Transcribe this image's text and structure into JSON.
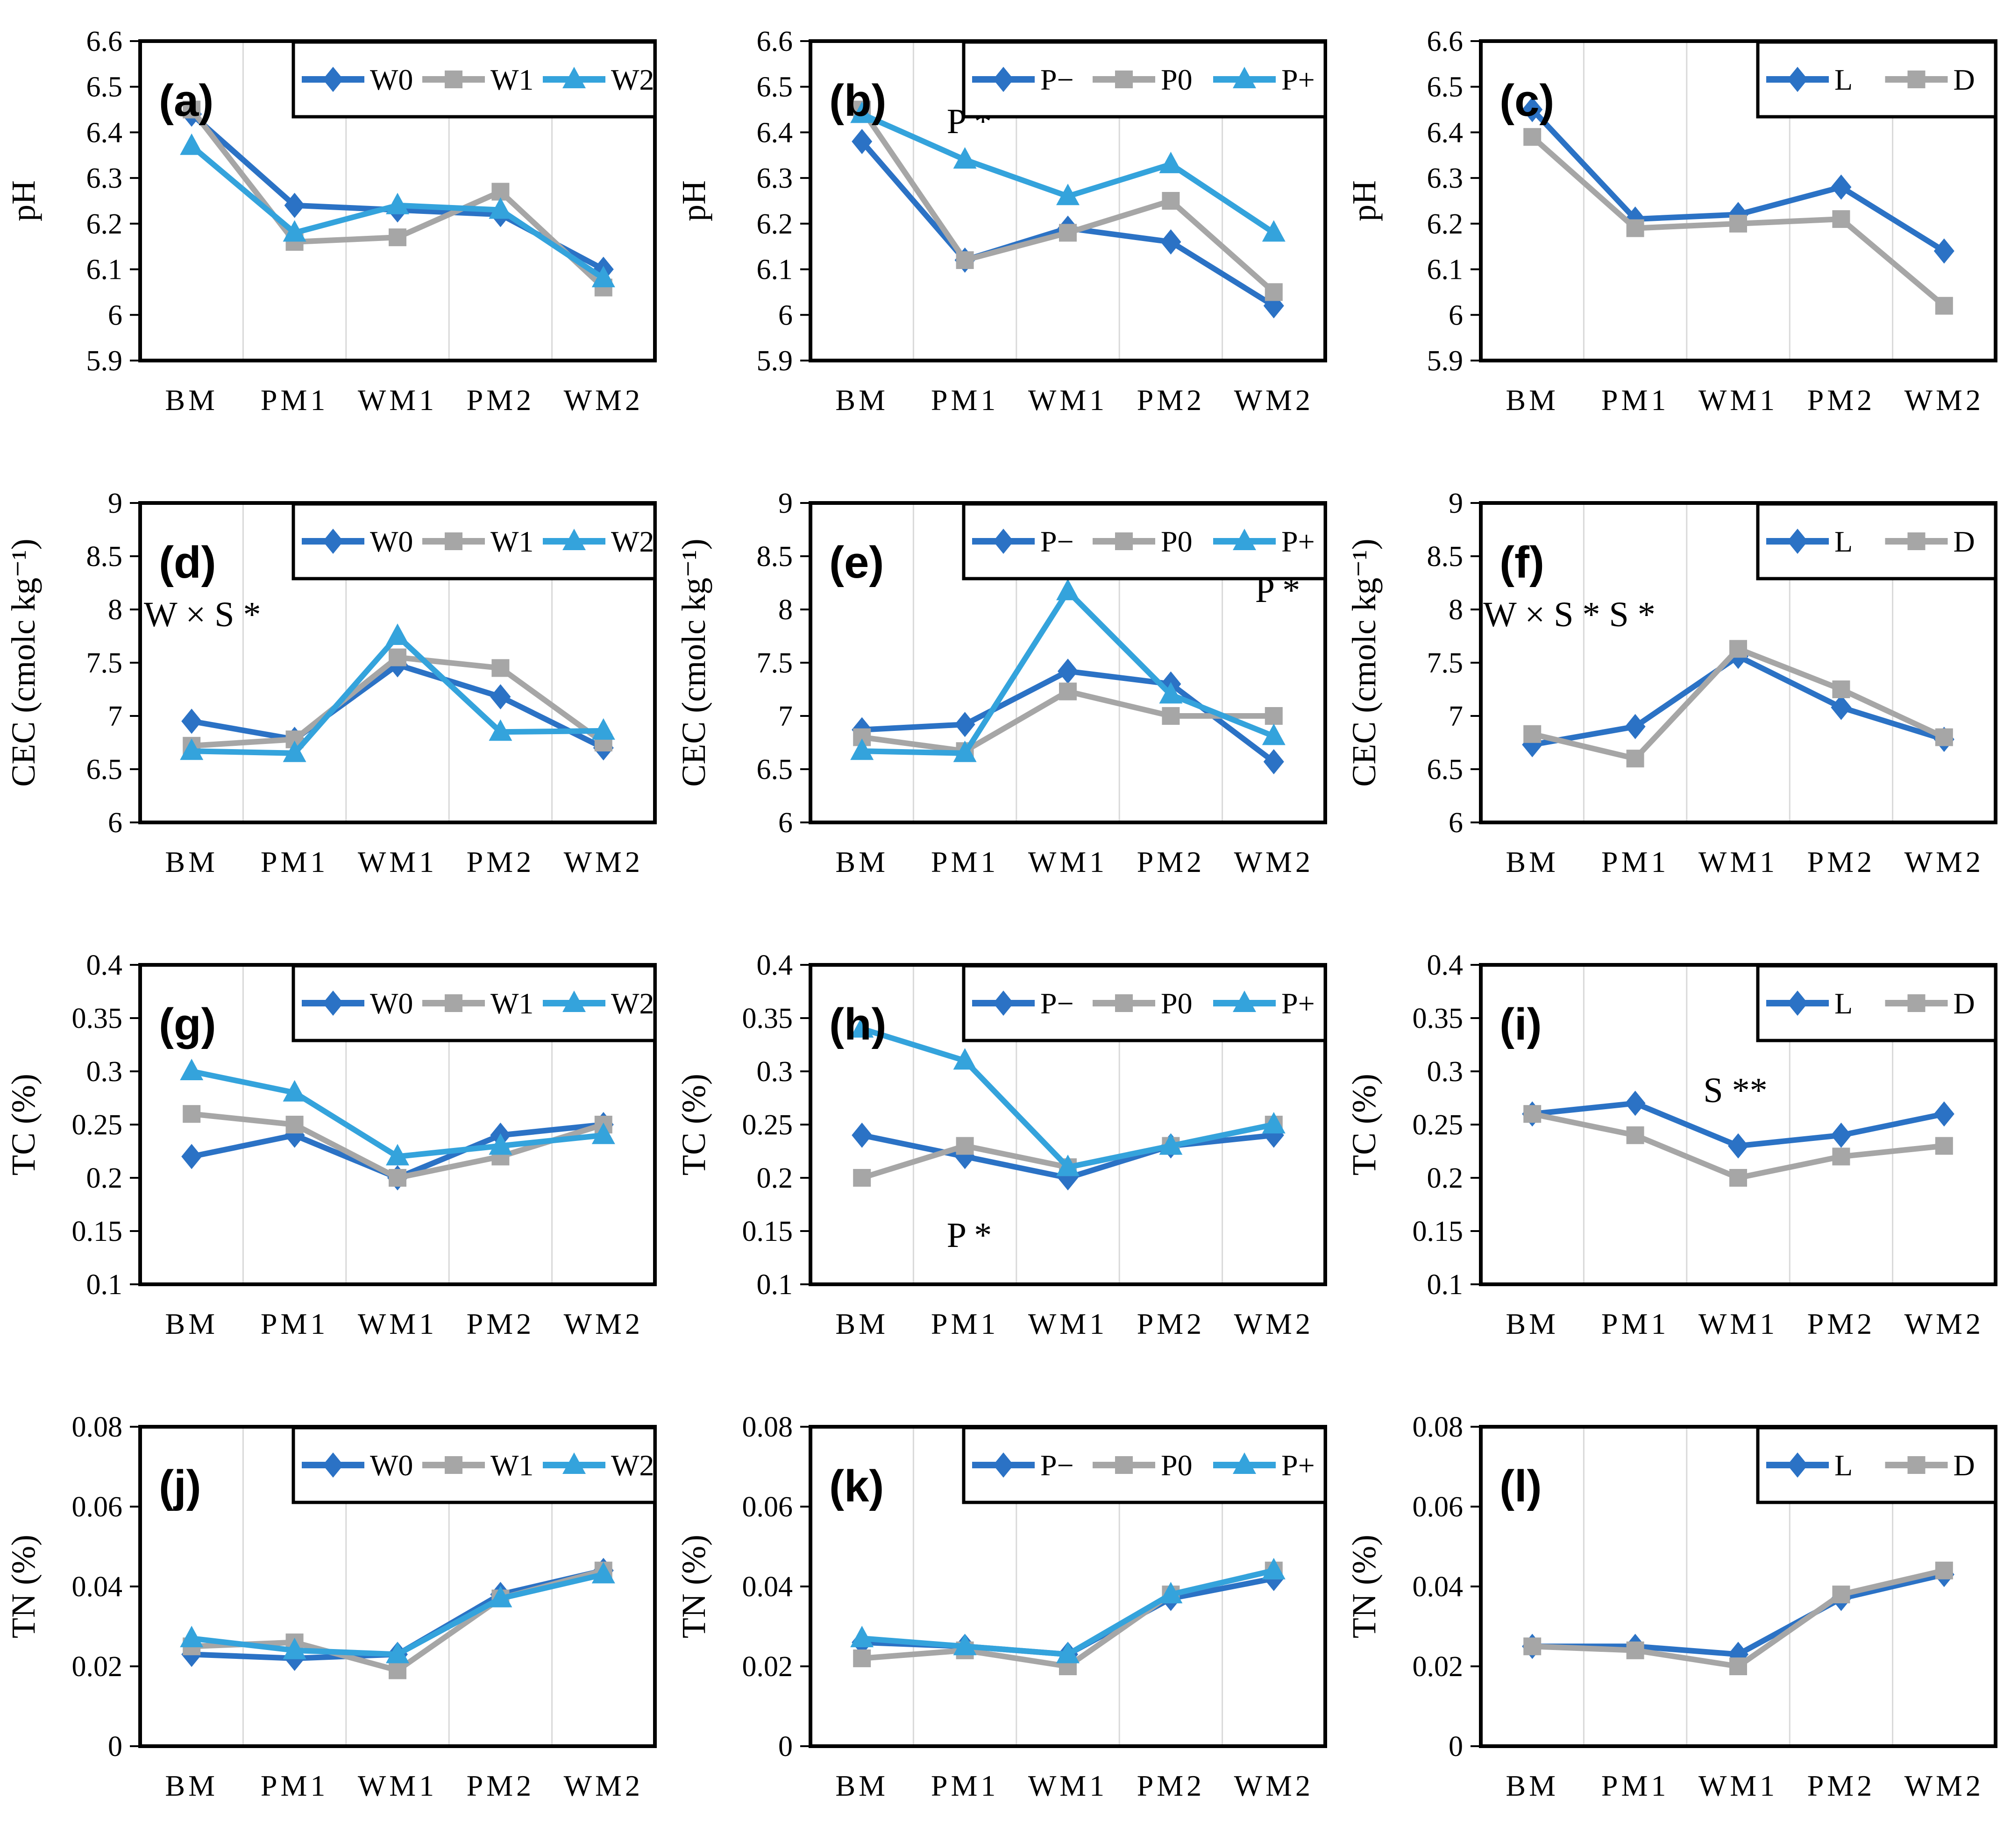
{
  "figure_description": "12-panel line chart figure (a)-(l): soil pH, CEC, TC, TN across sampling stages for watering (W0/W1/W2), phosphorus (P−/P0/P+) and light (L/D) treatments",
  "colors": {
    "series_blue": "#2B72C5",
    "series_gray": "#A6A6A6",
    "series_lightblue": "#34A3DC",
    "gridline": "#D9D9D9",
    "axis": "#000000",
    "background": "#FFFFFF"
  },
  "categories": [
    "BM",
    "PM1",
    "WM1",
    "PM2",
    "WM2"
  ],
  "chart_data": [
    {
      "type": "line",
      "id": "a",
      "label": "(a)",
      "ylabel": "pH",
      "ylim": [
        5.9,
        6.6
      ],
      "yticks": [
        "5.9",
        "6",
        "6.1",
        "6.2",
        "6.3",
        "6.4",
        "6.5",
        "6.6"
      ],
      "categories": [
        "BM",
        "PM1",
        "WM1",
        "PM2",
        "WM2"
      ],
      "grid": "vertical",
      "legend_position": "top-right",
      "series": [
        {
          "name": "W0",
          "marker": "diamond",
          "color": "#2B72C5",
          "values": [
            6.44,
            6.24,
            6.23,
            6.22,
            6.1
          ]
        },
        {
          "name": "W1",
          "marker": "square",
          "color": "#A6A6A6",
          "values": [
            6.45,
            6.16,
            6.17,
            6.27,
            6.06
          ]
        },
        {
          "name": "W2",
          "marker": "triangle",
          "color": "#34A3DC",
          "values": [
            6.37,
            6.18,
            6.24,
            6.23,
            6.08
          ]
        }
      ],
      "annotation": null
    },
    {
      "type": "line",
      "id": "b",
      "label": "(b)",
      "ylabel": "pH",
      "ylim": [
        5.9,
        6.6
      ],
      "yticks": [
        "5.9",
        "6",
        "6.1",
        "6.2",
        "6.3",
        "6.4",
        "6.5",
        "6.6"
      ],
      "categories": [
        "BM",
        "PM1",
        "WM1",
        "PM2",
        "WM2"
      ],
      "grid": "vertical",
      "legend_position": "top-right",
      "series": [
        {
          "name": "P−",
          "marker": "diamond",
          "color": "#2B72C5",
          "values": [
            6.38,
            6.12,
            6.19,
            6.16,
            6.02
          ]
        },
        {
          "name": "P0",
          "marker": "square",
          "color": "#A6A6A6",
          "values": [
            6.45,
            6.12,
            6.18,
            6.25,
            6.05
          ]
        },
        {
          "name": "P+",
          "marker": "triangle",
          "color": "#34A3DC",
          "values": [
            6.44,
            6.34,
            6.26,
            6.33,
            6.18
          ]
        }
      ],
      "annotation": {
        "text": "P *",
        "x": 640,
        "y": 285,
        "anchor": "middle"
      }
    },
    {
      "type": "line",
      "id": "c",
      "label": "(c)",
      "ylabel": "pH",
      "ylim": [
        5.9,
        6.6
      ],
      "yticks": [
        "5.9",
        "6",
        "6.1",
        "6.2",
        "6.3",
        "6.4",
        "6.5",
        "6.6"
      ],
      "categories": [
        "BM",
        "PM1",
        "WM1",
        "PM2",
        "WM2"
      ],
      "grid": "vertical",
      "legend_position": "top-right",
      "series": [
        {
          "name": "L",
          "marker": "diamond",
          "color": "#2B72C5",
          "values": [
            6.45,
            6.21,
            6.22,
            6.28,
            6.14
          ]
        },
        {
          "name": "D",
          "marker": "square",
          "color": "#A6A6A6",
          "values": [
            6.39,
            6.19,
            6.2,
            6.21,
            6.02
          ]
        }
      ],
      "annotation": null
    },
    {
      "type": "line",
      "id": "d",
      "label": "(d)",
      "ylabel": "CEC (cmolc kg⁻¹)",
      "ylim": [
        6,
        9
      ],
      "yticks": [
        "6",
        "6.5",
        "7",
        "7.5",
        "8",
        "8.5",
        "9"
      ],
      "categories": [
        "BM",
        "PM1",
        "WM1",
        "PM2",
        "WM2"
      ],
      "grid": "vertical",
      "legend_position": "top-right",
      "series": [
        {
          "name": "W0",
          "marker": "diamond",
          "color": "#2B72C5",
          "values": [
            6.95,
            6.78,
            7.48,
            7.18,
            6.7
          ]
        },
        {
          "name": "W1",
          "marker": "square",
          "color": "#A6A6A6",
          "values": [
            6.72,
            6.78,
            7.55,
            7.45,
            6.75
          ]
        },
        {
          "name": "W2",
          "marker": "triangle",
          "color": "#34A3DC",
          "values": [
            6.67,
            6.65,
            7.75,
            6.85,
            6.86
          ]
        }
      ],
      "annotation": {
        "text": "W × S *",
        "x": 308,
        "y": 352,
        "anchor": "start"
      }
    },
    {
      "type": "line",
      "id": "e",
      "label": "(e)",
      "ylabel": "CEC (cmolc kg⁻¹)",
      "ylim": [
        6,
        9
      ],
      "yticks": [
        "6",
        "6.5",
        "7",
        "7.5",
        "8",
        "8.5",
        "9"
      ],
      "categories": [
        "BM",
        "PM1",
        "WM1",
        "PM2",
        "WM2"
      ],
      "grid": "vertical",
      "legend_position": "top-right",
      "series": [
        {
          "name": "P−",
          "marker": "diamond",
          "color": "#2B72C5",
          "values": [
            6.87,
            6.92,
            7.42,
            7.3,
            6.57
          ]
        },
        {
          "name": "P0",
          "marker": "square",
          "color": "#A6A6A6",
          "values": [
            6.8,
            6.67,
            7.23,
            7.0,
            7.0
          ]
        },
        {
          "name": "P+",
          "marker": "triangle",
          "color": "#34A3DC",
          "values": [
            6.67,
            6.65,
            8.17,
            7.2,
            6.81
          ]
        }
      ],
      "annotation": {
        "text": "P *",
        "x": 1300,
        "y": 300,
        "anchor": "middle"
      }
    },
    {
      "type": "line",
      "id": "f",
      "label": "(f)",
      "ylabel": "CEC (cmolc kg⁻¹)",
      "ylim": [
        6,
        9
      ],
      "yticks": [
        "6",
        "6.5",
        "7",
        "7.5",
        "8",
        "8.5",
        "9"
      ],
      "categories": [
        "BM",
        "PM1",
        "WM1",
        "PM2",
        "WM2"
      ],
      "grid": "vertical",
      "legend_position": "top-right",
      "series": [
        {
          "name": "L",
          "marker": "diamond",
          "color": "#2B72C5",
          "values": [
            6.73,
            6.9,
            7.56,
            7.08,
            6.78
          ]
        },
        {
          "name": "D",
          "marker": "square",
          "color": "#A6A6A6",
          "values": [
            6.83,
            6.6,
            7.63,
            7.25,
            6.8
          ]
        }
      ],
      "annotation": {
        "text": "W × S *  S *",
        "x": 305,
        "y": 352,
        "anchor": "start"
      }
    },
    {
      "type": "line",
      "id": "g",
      "label": "(g)",
      "ylabel": "TC (%)",
      "ylim": [
        0.1,
        0.4
      ],
      "yticks": [
        "0.1",
        "0.15",
        "0.2",
        "0.25",
        "0.3",
        "0.35",
        "0.4"
      ],
      "categories": [
        "BM",
        "PM1",
        "WM1",
        "PM2",
        "WM2"
      ],
      "grid": "vertical",
      "legend_position": "top-right",
      "series": [
        {
          "name": "W0",
          "marker": "diamond",
          "color": "#2B72C5",
          "values": [
            0.22,
            0.24,
            0.2,
            0.24,
            0.25
          ]
        },
        {
          "name": "W1",
          "marker": "square",
          "color": "#A6A6A6",
          "values": [
            0.26,
            0.25,
            0.2,
            0.22,
            0.25
          ]
        },
        {
          "name": "W2",
          "marker": "triangle",
          "color": "#34A3DC",
          "values": [
            0.3,
            0.28,
            0.22,
            0.23,
            0.24
          ]
        }
      ],
      "annotation": null
    },
    {
      "type": "line",
      "id": "h",
      "label": "(h)",
      "ylabel": "TC (%)",
      "ylim": [
        0.1,
        0.4
      ],
      "yticks": [
        "0.1",
        "0.15",
        "0.2",
        "0.25",
        "0.3",
        "0.35",
        "0.4"
      ],
      "categories": [
        "BM",
        "PM1",
        "WM1",
        "PM2",
        "WM2"
      ],
      "grid": "vertical",
      "legend_position": "top-right",
      "series": [
        {
          "name": "P−",
          "marker": "diamond",
          "color": "#2B72C5",
          "values": [
            0.24,
            0.22,
            0.2,
            0.23,
            0.24
          ]
        },
        {
          "name": "P0",
          "marker": "square",
          "color": "#A6A6A6",
          "values": [
            0.2,
            0.23,
            0.21,
            0.23,
            0.25
          ]
        },
        {
          "name": "P+",
          "marker": "triangle",
          "color": "#34A3DC",
          "values": [
            0.34,
            0.31,
            0.21,
            0.23,
            0.25
          ]
        }
      ],
      "annotation": {
        "text": "P *",
        "x": 640,
        "y": 692,
        "anchor": "middle"
      }
    },
    {
      "type": "line",
      "id": "i",
      "label": "(i)",
      "ylabel": "TC (%)",
      "ylim": [
        0.1,
        0.4
      ],
      "yticks": [
        "0.1",
        "0.15",
        "0.2",
        "0.25",
        "0.3",
        "0.35",
        "0.4"
      ],
      "categories": [
        "BM",
        "PM1",
        "WM1",
        "PM2",
        "WM2"
      ],
      "grid": "vertical",
      "legend_position": "top-right",
      "series": [
        {
          "name": "L",
          "marker": "diamond",
          "color": "#2B72C5",
          "values": [
            0.26,
            0.27,
            0.23,
            0.24,
            0.26
          ]
        },
        {
          "name": "D",
          "marker": "square",
          "color": "#A6A6A6",
          "values": [
            0.26,
            0.24,
            0.2,
            0.22,
            0.23
          ]
        }
      ],
      "annotation": {
        "text": "S **",
        "x": 845,
        "y": 382,
        "anchor": "middle"
      }
    },
    {
      "type": "line",
      "id": "j",
      "label": "(j)",
      "ylabel": "TN (%)",
      "ylim": [
        0,
        0.08
      ],
      "yticks": [
        "0",
        "0.02",
        "0.04",
        "0.06",
        "0.08"
      ],
      "categories": [
        "BM",
        "PM1",
        "WM1",
        "PM2",
        "WM2"
      ],
      "grid": "vertical",
      "legend_position": "top-right",
      "series": [
        {
          "name": "W0",
          "marker": "diamond",
          "color": "#2B72C5",
          "values": [
            0.023,
            0.022,
            0.023,
            0.038,
            0.044
          ]
        },
        {
          "name": "W1",
          "marker": "square",
          "color": "#A6A6A6",
          "values": [
            0.025,
            0.026,
            0.019,
            0.037,
            0.044
          ]
        },
        {
          "name": "W2",
          "marker": "triangle",
          "color": "#34A3DC",
          "values": [
            0.027,
            0.024,
            0.023,
            0.037,
            0.043
          ]
        }
      ],
      "annotation": null
    },
    {
      "type": "line",
      "id": "k",
      "label": "(k)",
      "ylabel": "TN (%)",
      "ylim": [
        0,
        0.08
      ],
      "yticks": [
        "0",
        "0.02",
        "0.04",
        "0.06",
        "0.08"
      ],
      "categories": [
        "BM",
        "PM1",
        "WM1",
        "PM2",
        "WM2"
      ],
      "grid": "vertical",
      "legend_position": "top-right",
      "series": [
        {
          "name": "P−",
          "marker": "diamond",
          "color": "#2B72C5",
          "values": [
            0.026,
            0.025,
            0.023,
            0.037,
            0.042
          ]
        },
        {
          "name": "P0",
          "marker": "square",
          "color": "#A6A6A6",
          "values": [
            0.022,
            0.024,
            0.02,
            0.038,
            0.044
          ]
        },
        {
          "name": "P+",
          "marker": "triangle",
          "color": "#34A3DC",
          "values": [
            0.027,
            0.025,
            0.023,
            0.038,
            0.044
          ]
        }
      ],
      "annotation": null
    },
    {
      "type": "line",
      "id": "l",
      "label": "(l)",
      "ylabel": "TN (%)",
      "ylim": [
        0,
        0.08
      ],
      "yticks": [
        "0",
        "0.02",
        "0.04",
        "0.06",
        "0.08"
      ],
      "categories": [
        "BM",
        "PM1",
        "WM1",
        "PM2",
        "WM2"
      ],
      "grid": "vertical",
      "legend_position": "top-right",
      "series": [
        {
          "name": "L",
          "marker": "diamond",
          "color": "#2B72C5",
          "values": [
            0.025,
            0.025,
            0.023,
            0.037,
            0.043
          ]
        },
        {
          "name": "D",
          "marker": "square",
          "color": "#A6A6A6",
          "values": [
            0.025,
            0.024,
            0.02,
            0.038,
            0.044
          ]
        }
      ],
      "annotation": null
    }
  ]
}
